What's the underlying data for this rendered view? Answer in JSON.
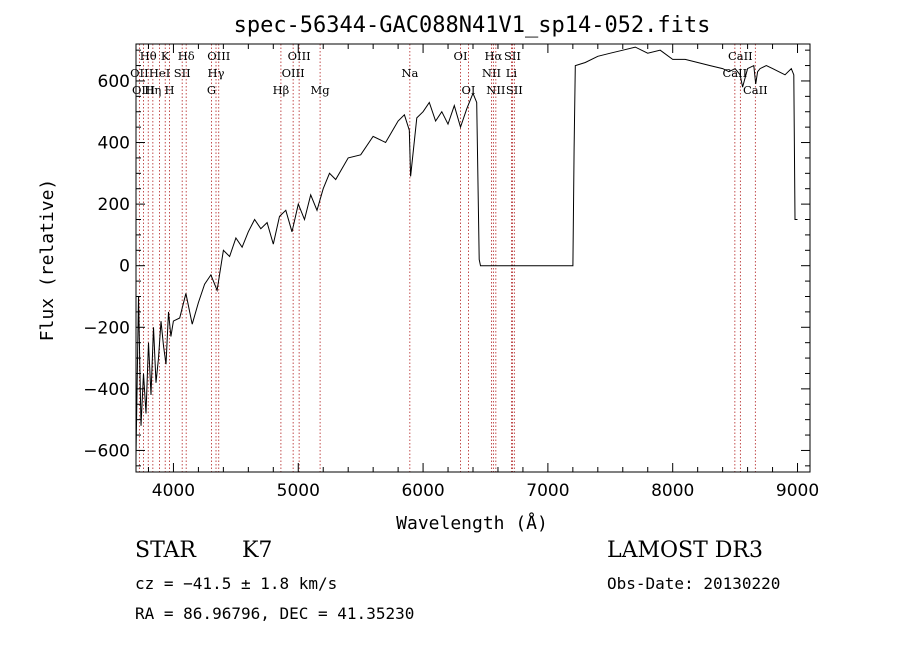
{
  "chart_data": {
    "type": "line",
    "title": "spec-56344-GAC088N41V1_sp14-052.fits",
    "xlabel": "Wavelength (Å)",
    "ylabel": "Flux (relative)",
    "xlim": [
      3700,
      9100
    ],
    "ylim": [
      -670,
      720
    ],
    "xticks": [
      4000,
      5000,
      6000,
      7000,
      8000,
      9000
    ],
    "yticks": [
      -600,
      -400,
      -200,
      0,
      200,
      400,
      600
    ],
    "grid": false,
    "series": [
      {
        "name": "flux",
        "x": [
          3700,
          3720,
          3740,
          3760,
          3780,
          3800,
          3820,
          3840,
          3860,
          3880,
          3900,
          3920,
          3940,
          3960,
          3980,
          4000,
          4050,
          4100,
          4150,
          4200,
          4250,
          4300,
          4350,
          4400,
          4450,
          4500,
          4550,
          4600,
          4650,
          4700,
          4750,
          4800,
          4850,
          4900,
          4950,
          5000,
          5050,
          5100,
          5150,
          5200,
          5250,
          5300,
          5400,
          5500,
          5600,
          5700,
          5800,
          5850,
          5890,
          5900,
          5950,
          6000,
          6050,
          6100,
          6150,
          6200,
          6250,
          6300,
          6350,
          6400,
          6430,
          6450,
          6460,
          6470,
          6500,
          6800,
          7000,
          7200,
          7210,
          7220,
          7300,
          7400,
          7500,
          7600,
          7700,
          7800,
          7900,
          8000,
          8100,
          8200,
          8300,
          8400,
          8450,
          8500,
          8540,
          8560,
          8600,
          8650,
          8665,
          8680,
          8700,
          8750,
          8800,
          8850,
          8900,
          8950,
          8970,
          8980,
          9000
        ],
        "values": [
          -620,
          -100,
          -520,
          -350,
          -480,
          -250,
          -420,
          -200,
          -380,
          -300,
          -180,
          -260,
          -320,
          -150,
          -230,
          -180,
          -170,
          -90,
          -190,
          -120,
          -60,
          -30,
          -80,
          50,
          30,
          90,
          60,
          110,
          150,
          120,
          140,
          70,
          160,
          180,
          110,
          200,
          150,
          230,
          180,
          250,
          300,
          280,
          350,
          360,
          420,
          400,
          470,
          490,
          440,
          290,
          480,
          500,
          530,
          470,
          500,
          460,
          520,
          450,
          510,
          560,
          530,
          20,
          0,
          0,
          0,
          0,
          0,
          0,
          380,
          650,
          660,
          680,
          690,
          700,
          710,
          690,
          700,
          670,
          670,
          660,
          650,
          640,
          630,
          640,
          620,
          580,
          640,
          650,
          590,
          630,
          640,
          650,
          640,
          630,
          620,
          640,
          620,
          150,
          150
        ]
      }
    ],
    "lines": [
      {
        "label": "Hθ",
        "x": 3798,
        "row": 1
      },
      {
        "label": "OII",
        "x": 3727,
        "row": 2
      },
      {
        "label": "OIII",
        "x": 3760,
        "row": 3
      },
      {
        "label": "K",
        "x": 3934,
        "row": 1
      },
      {
        "label": "HeI",
        "x": 3889,
        "row": 2
      },
      {
        "label": "Hη",
        "x": 3835,
        "row": 3
      },
      {
        "label": "SII",
        "x": 4070,
        "row": 2
      },
      {
        "label": "H",
        "x": 3969,
        "row": 3
      },
      {
        "label": "Hδ",
        "x": 4102,
        "row": 1
      },
      {
        "label": "OIII",
        "x": 4363,
        "row": 1
      },
      {
        "label": "Hγ",
        "x": 4341,
        "row": 2
      },
      {
        "label": "G",
        "x": 4305,
        "row": 3
      },
      {
        "label": "Hβ",
        "x": 4861,
        "row": 3
      },
      {
        "label": "OIII",
        "x": 5007,
        "row": 1
      },
      {
        "label": "OIII",
        "x": 4959,
        "row": 2
      },
      {
        "label": "Mg",
        "x": 5175,
        "row": 3
      },
      {
        "label": "Na",
        "x": 5894,
        "row": 2
      },
      {
        "label": "OI",
        "x": 6300,
        "row": 1
      },
      {
        "label": "OI",
        "x": 6364,
        "row": 3
      },
      {
        "label": "Hα",
        "x": 6563,
        "row": 1
      },
      {
        "label": "SII",
        "x": 6716,
        "row": 1
      },
      {
        "label": "NII",
        "x": 6548,
        "row": 2
      },
      {
        "label": "Li",
        "x": 6708,
        "row": 2
      },
      {
        "label": "NII",
        "x": 6583,
        "row": 3
      },
      {
        "label": "SII",
        "x": 6731,
        "row": 3
      },
      {
        "label": "CaII",
        "x": 8542,
        "row": 1
      },
      {
        "label": "CaII",
        "x": 8498,
        "row": 2
      },
      {
        "label": "CaII",
        "x": 8662,
        "row": 3
      }
    ]
  },
  "info": {
    "class_type": "STAR",
    "subclass": "K7",
    "cz": "cz = −41.5 ± 1.8 km/s",
    "coords": "RA =  86.96796, DEC =  41.35230",
    "survey": "LAMOST DR3",
    "obs_date": "Obs-Date: 20130220"
  }
}
